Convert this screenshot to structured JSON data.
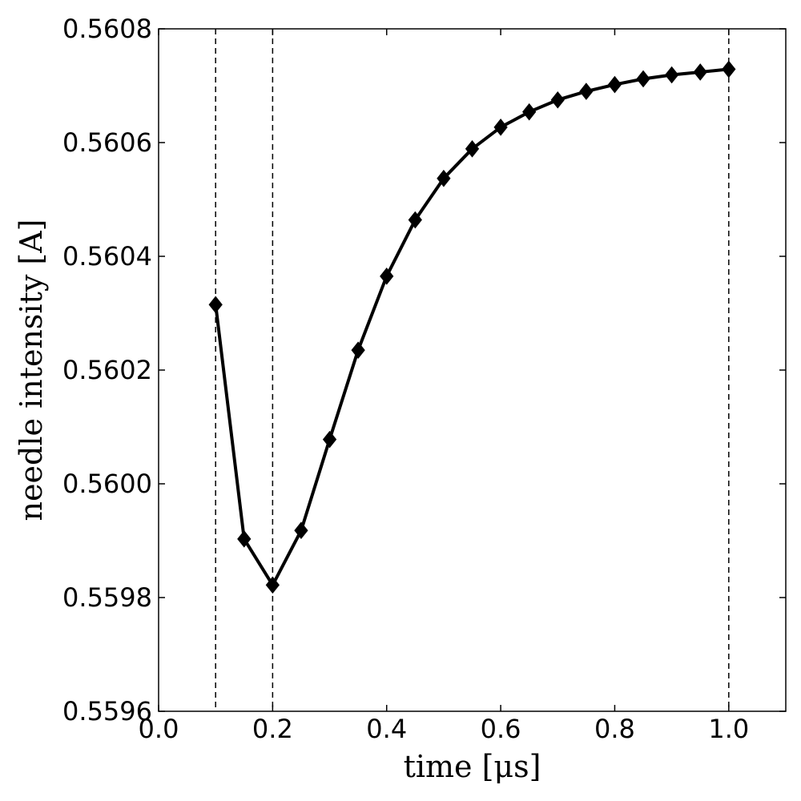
{
  "chart_data": {
    "type": "line",
    "title": "",
    "xlabel": "time [μs]",
    "ylabel": "needle intensity [A]",
    "xlim": [
      0.0,
      1.1
    ],
    "ylim": [
      0.5596,
      0.5608
    ],
    "xticks": [
      {
        "value": 0.0,
        "label": "0.0"
      },
      {
        "value": 0.2,
        "label": "0.2"
      },
      {
        "value": 0.4,
        "label": "0.4"
      },
      {
        "value": 0.6,
        "label": "0.6"
      },
      {
        "value": 0.8,
        "label": "0.8"
      },
      {
        "value": 1.0,
        "label": "1.0"
      }
    ],
    "yticks": [
      {
        "value": 0.5596,
        "label": "0.5596"
      },
      {
        "value": 0.5598,
        "label": "0.5598"
      },
      {
        "value": 0.56,
        "label": "0.5600"
      },
      {
        "value": 0.5602,
        "label": "0.5602"
      },
      {
        "value": 0.5604,
        "label": "0.5604"
      },
      {
        "value": 0.5606,
        "label": "0.5606"
      },
      {
        "value": 0.5608,
        "label": "0.5608"
      }
    ],
    "vlines": [
      0.1,
      0.2,
      1.0
    ],
    "grid": false,
    "series": [
      {
        "color": "#000000",
        "marker": "diamond",
        "x": [
          0.1,
          0.15,
          0.2,
          0.25,
          0.3,
          0.35,
          0.4,
          0.45,
          0.5,
          0.55,
          0.6,
          0.65,
          0.7,
          0.75,
          0.8,
          0.85,
          0.9,
          0.95,
          1.0
        ],
        "y": [
          0.560315,
          0.559903,
          0.559822,
          0.559918,
          0.560078,
          0.560235,
          0.560365,
          0.560464,
          0.560537,
          0.560589,
          0.560627,
          0.560654,
          0.560675,
          0.56069,
          0.560702,
          0.560712,
          0.560719,
          0.560724,
          0.560729
        ]
      }
    ]
  }
}
